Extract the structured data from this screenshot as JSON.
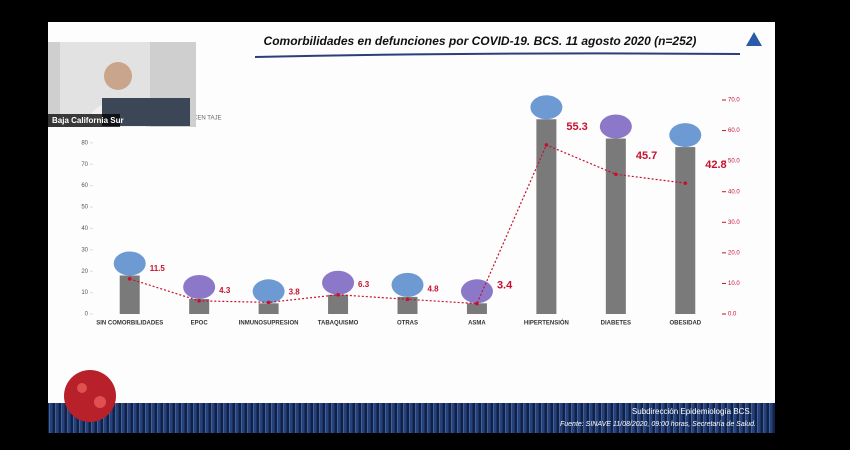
{
  "chart_data": {
    "type": "bar",
    "title": "Comorbilidades en defunciones por COVID-19. BCS. 11 agosto 2020 (n=252)",
    "axis_note": "CEN TAJE",
    "categories": [
      "SIN COMORBILIDADES",
      "EPOC",
      "INMUNOSUPRESION",
      "TABAQUISMO",
      "OTRAS",
      "ASMA",
      "HIPERTENSIÓN",
      "DIABETES",
      "OBESIDAD"
    ],
    "series": [
      {
        "color": "#7a7a7a",
        "values": [
          18,
          7,
          5,
          9,
          8,
          5,
          91,
          82,
          78
        ]
      },
      {
        "color": "#c8102e",
        "axis": "y2",
        "values": [
          11.5,
          4.3,
          3.8,
          6.3,
          4.8,
          3.4,
          55.3,
          45.7,
          42.8
        ]
      }
    ],
    "ylim": [
      0,
      100
    ],
    "yticks": [
      0,
      10,
      20,
      30,
      40,
      50,
      60,
      70,
      80
    ],
    "y2lim": [
      0,
      70
    ],
    "y2ticks": [
      {
        "value": 0,
        "label": "0.0"
      },
      {
        "value": 10,
        "label": "10.0"
      },
      {
        "value": 20,
        "label": "20.0"
      },
      {
        "value": 30,
        "label": "30.0"
      },
      {
        "value": 40,
        "label": "40.0"
      },
      {
        "value": 50,
        "label": "50.0"
      },
      {
        "value": 60,
        "label": "60.0"
      },
      {
        "value": 70,
        "label": "70.0"
      }
    ],
    "webcam_label": "Baja California Sur",
    "footer": "Subdirección Epidemiología BCS.",
    "source": "Fuente: SINAVE 11/08/2020, 09:00 horas, Secretaría de Salud."
  }
}
